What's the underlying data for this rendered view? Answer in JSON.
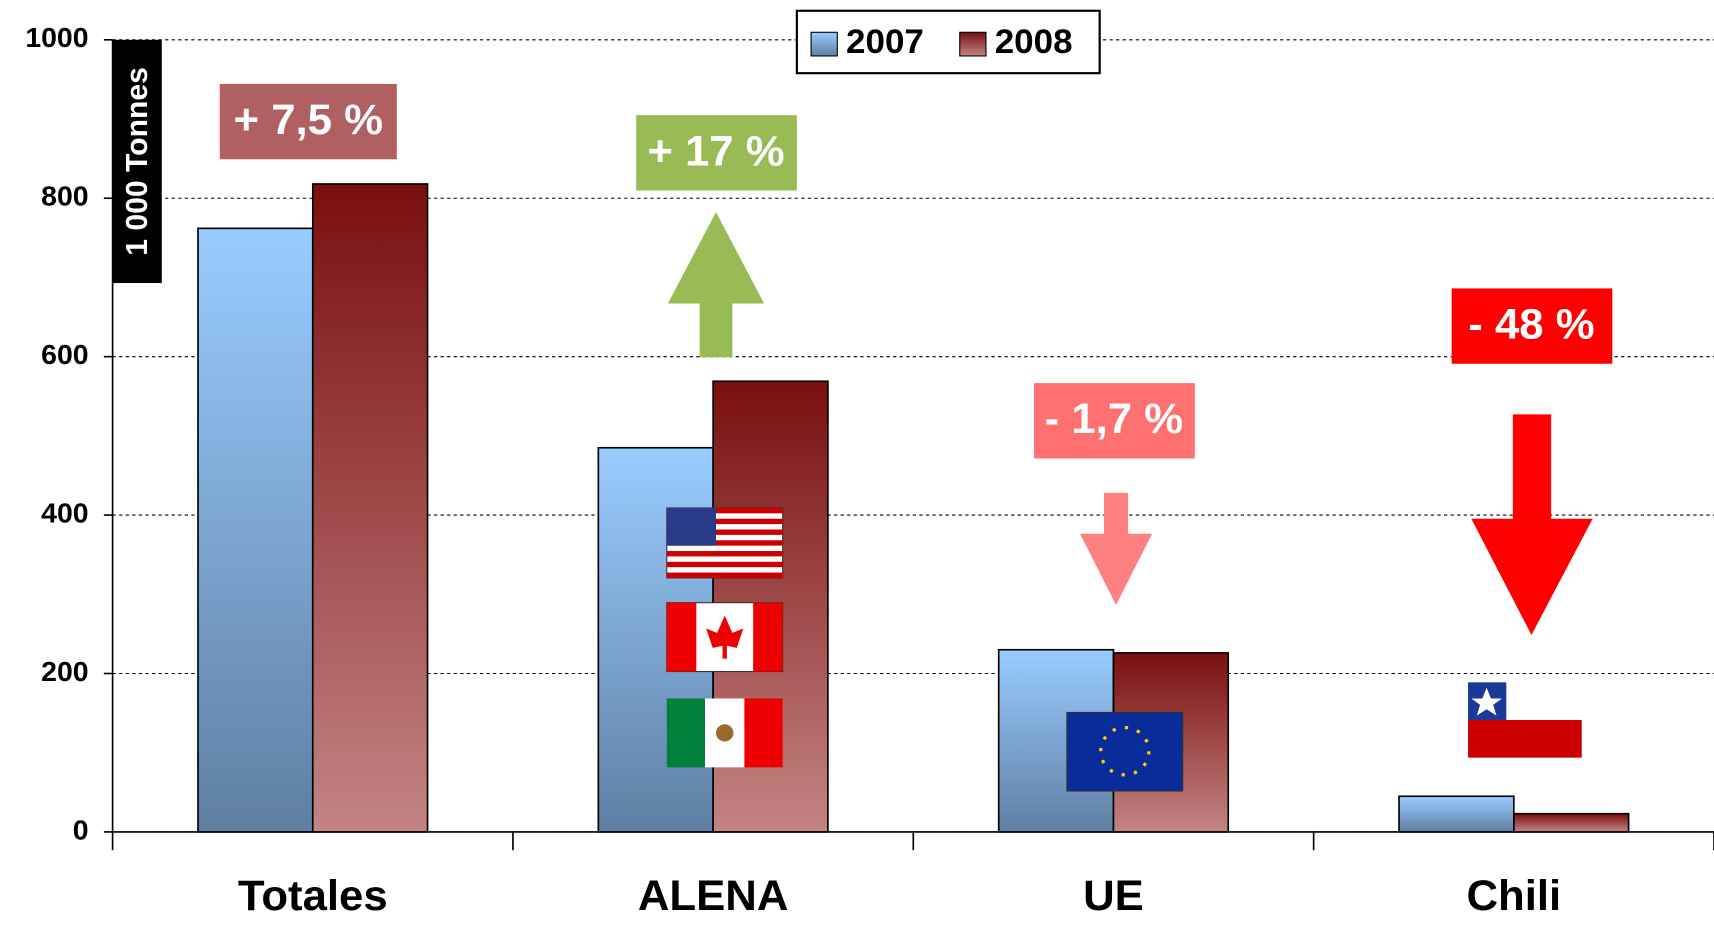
{
  "chart_data": {
    "type": "bar",
    "y_label": "1 000 Tonnes",
    "categories": [
      "Totales",
      "ALENA",
      "UE",
      "Chili"
    ],
    "series": [
      {
        "name": "2007",
        "color": "#99ccff",
        "values": [
          762,
          485,
          230,
          45
        ]
      },
      {
        "name": "2008",
        "color": "#7a0f0f",
        "values": [
          818,
          569,
          226,
          23
        ]
      }
    ],
    "ylim": [
      0,
      1000
    ],
    "yticks": [
      0,
      200,
      400,
      600,
      800,
      1000
    ],
    "grid": true,
    "legend": "top",
    "annotations": [
      "+ 7,5 %",
      "+ 17 %",
      "- 1,7 %",
      "- 48 %"
    ]
  }
}
